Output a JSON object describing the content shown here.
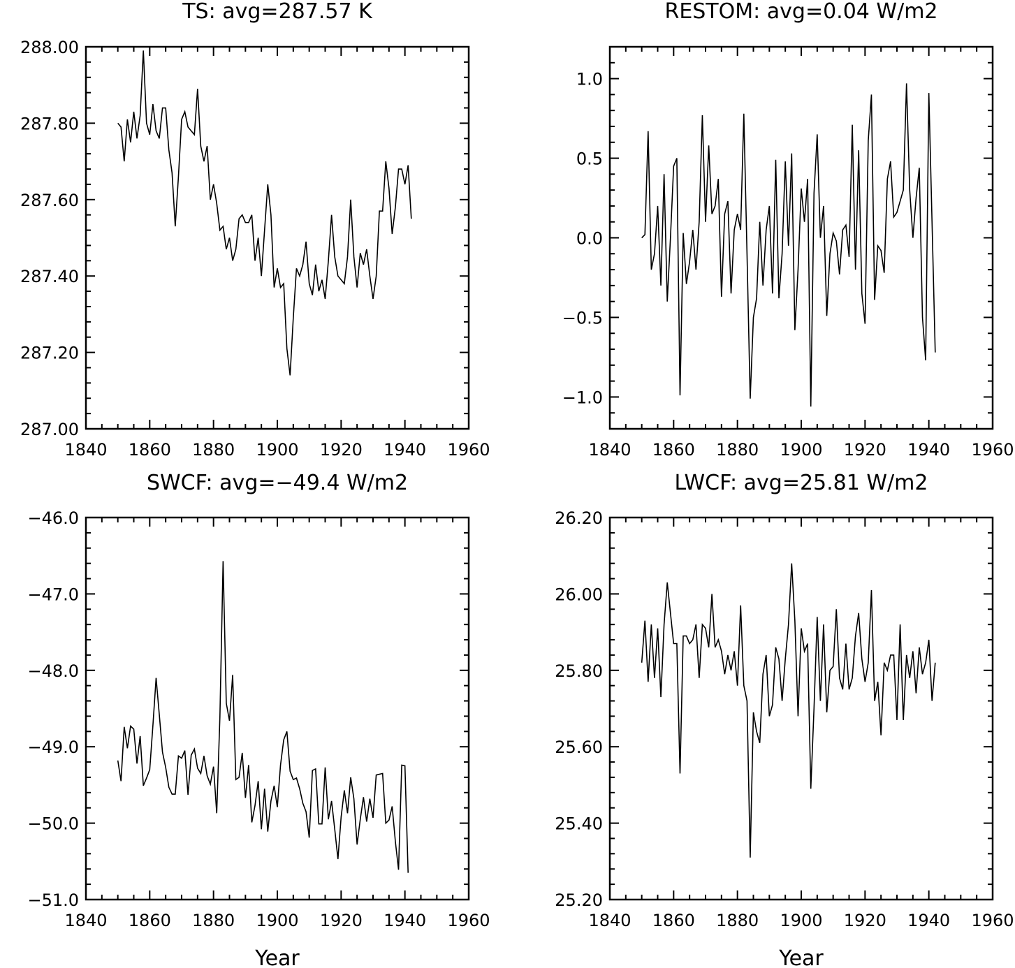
{
  "chart_data": [
    {
      "type": "line",
      "title": "TS: avg=287.57 K",
      "xlabel": "",
      "ylabel": "",
      "xlim": [
        1840,
        1960
      ],
      "ylim": [
        287.0,
        288.0
      ],
      "x_ticks": [
        1840,
        1860,
        1880,
        1900,
        1920,
        1940,
        1960
      ],
      "x_tick_labels": [
        "1840",
        "1860",
        "1880",
        "1900",
        "1920",
        "1940",
        "1960"
      ],
      "y_ticks": [
        287.0,
        287.2,
        287.4,
        287.6,
        287.8,
        288.0
      ],
      "y_tick_labels": [
        "287.00",
        "287.20",
        "287.40",
        "287.60",
        "287.80",
        "288.00"
      ],
      "x_start": 1850,
      "values": [
        287.8,
        287.79,
        287.7,
        287.81,
        287.75,
        287.83,
        287.76,
        287.82,
        287.99,
        287.8,
        287.77,
        287.85,
        287.78,
        287.76,
        287.84,
        287.84,
        287.73,
        287.67,
        287.53,
        287.66,
        287.81,
        287.83,
        287.79,
        287.78,
        287.77,
        287.89,
        287.74,
        287.7,
        287.74,
        287.6,
        287.64,
        287.59,
        287.52,
        287.53,
        287.47,
        287.5,
        287.44,
        287.47,
        287.55,
        287.56,
        287.54,
        287.54,
        287.56,
        287.44,
        287.5,
        287.4,
        287.52,
        287.64,
        287.56,
        287.37,
        287.42,
        287.37,
        287.38,
        287.21,
        287.14,
        287.29,
        287.42,
        287.4,
        287.43,
        287.49,
        287.38,
        287.35,
        287.43,
        287.36,
        287.39,
        287.34,
        287.44,
        287.56,
        287.45,
        287.4,
        287.39,
        287.38,
        287.45,
        287.6,
        287.45,
        287.37,
        287.46,
        287.43,
        287.47,
        287.4,
        287.34,
        287.4,
        287.57,
        287.57,
        287.7,
        287.63,
        287.51,
        287.58,
        287.68,
        287.68,
        287.64,
        287.69,
        287.55
      ]
    },
    {
      "type": "line",
      "title": "RESTOM: avg=0.04 W/m2",
      "xlabel": "",
      "ylabel": "",
      "xlim": [
        1840,
        1960
      ],
      "ylim": [
        -1.2,
        1.2
      ],
      "x_ticks": [
        1840,
        1860,
        1880,
        1900,
        1920,
        1940,
        1960
      ],
      "x_tick_labels": [
        "1840",
        "1860",
        "1880",
        "1900",
        "1920",
        "1940",
        "1960"
      ],
      "y_ticks": [
        -1.0,
        -0.5,
        0.0,
        0.5,
        1.0
      ],
      "y_tick_labels": [
        "−1.0",
        "−0.5",
        "0.0",
        "0.5",
        "1.0"
      ],
      "x_start": 1850,
      "values": [
        0.0,
        0.02,
        0.67,
        -0.2,
        -0.1,
        0.2,
        -0.3,
        0.4,
        -0.4,
        0.0,
        0.45,
        0.5,
        -0.99,
        0.03,
        -0.29,
        -0.15,
        0.05,
        -0.2,
        0.1,
        0.77,
        0.1,
        0.58,
        0.15,
        0.2,
        0.37,
        -0.37,
        0.15,
        0.23,
        -0.35,
        0.05,
        0.15,
        0.05,
        0.78,
        -0.1,
        -1.01,
        -0.5,
        -0.38,
        0.1,
        -0.3,
        0.05,
        0.2,
        -0.35,
        0.49,
        -0.38,
        -0.1,
        0.48,
        -0.05,
        0.53,
        -0.58,
        -0.2,
        0.31,
        0.1,
        0.37,
        -1.06,
        0.28,
        0.65,
        0.0,
        0.2,
        -0.49,
        -0.1,
        0.03,
        -0.02,
        -0.23,
        0.05,
        0.08,
        -0.12,
        0.71,
        -0.2,
        0.55,
        -0.35,
        -0.54,
        0.61,
        0.9,
        -0.39,
        -0.05,
        -0.08,
        -0.22,
        0.37,
        0.48,
        0.13,
        0.16,
        0.23,
        0.3,
        0.97,
        0.3,
        0.0,
        0.25,
        0.44,
        -0.5,
        -0.77,
        0.91,
        0.1,
        -0.72
      ]
    },
    {
      "type": "line",
      "title": "SWCF: avg=−49.4 W/m2",
      "xlabel": "Year",
      "ylabel": "",
      "xlim": [
        1840,
        1960
      ],
      "ylim": [
        -51.0,
        -46.0
      ],
      "x_ticks": [
        1840,
        1860,
        1880,
        1900,
        1920,
        1940,
        1960
      ],
      "x_tick_labels": [
        "1840",
        "1860",
        "1880",
        "1900",
        "1920",
        "1940",
        "1960"
      ],
      "y_ticks": [
        -51.0,
        -50.0,
        -49.0,
        -48.0,
        -47.0,
        -46.0
      ],
      "y_tick_labels": [
        "−51.0",
        "−50.0",
        "−49.0",
        "−48.0",
        "−47.0",
        "−46.0"
      ],
      "x_start": 1850,
      "values": [
        -49.18,
        -49.45,
        -48.74,
        -49.02,
        -48.73,
        -48.77,
        -49.22,
        -48.86,
        -49.51,
        -49.41,
        -49.3,
        -48.72,
        -48.1,
        -48.58,
        -49.07,
        -49.27,
        -49.53,
        -49.62,
        -49.62,
        -49.12,
        -49.15,
        -49.05,
        -49.63,
        -49.11,
        -49.03,
        -49.28,
        -49.35,
        -49.12,
        -49.38,
        -49.49,
        -49.26,
        -49.87,
        -48.61,
        -46.57,
        -48.43,
        -48.66,
        -48.06,
        -49.43,
        -49.4,
        -49.08,
        -49.67,
        -49.24,
        -49.99,
        -49.77,
        -49.45,
        -50.08,
        -49.55,
        -50.11,
        -49.71,
        -49.51,
        -49.79,
        -49.24,
        -48.91,
        -48.8,
        -49.32,
        -49.43,
        -49.41,
        -49.55,
        -49.74,
        -49.85,
        -50.19,
        -49.31,
        -49.29,
        -50.01,
        -50.01,
        -49.27,
        -49.95,
        -49.71,
        -50.08,
        -50.47,
        -49.92,
        -49.57,
        -49.87,
        -49.4,
        -49.68,
        -50.28,
        -49.95,
        -49.66,
        -49.98,
        -49.68,
        -49.93,
        -49.37,
        -49.36,
        -49.35,
        -50.0,
        -49.96,
        -49.78,
        -50.24,
        -50.61,
        -49.24,
        -49.25,
        -50.65
      ]
    },
    {
      "type": "line",
      "title": "LWCF: avg=25.81 W/m2",
      "xlabel": "Year",
      "ylabel": "",
      "xlim": [
        1840,
        1960
      ],
      "ylim": [
        25.2,
        26.2
      ],
      "x_ticks": [
        1840,
        1860,
        1880,
        1900,
        1920,
        1940,
        1960
      ],
      "x_tick_labels": [
        "1840",
        "1860",
        "1880",
        "1900",
        "1920",
        "1940",
        "1960"
      ],
      "y_ticks": [
        25.2,
        25.4,
        25.6,
        25.8,
        26.0,
        26.2
      ],
      "y_tick_labels": [
        "25.20",
        "25.40",
        "25.60",
        "25.80",
        "26.00",
        "26.20"
      ],
      "x_start": 1850,
      "values": [
        25.82,
        25.93,
        25.77,
        25.92,
        25.78,
        25.91,
        25.73,
        25.92,
        26.03,
        25.95,
        25.87,
        25.87,
        25.53,
        25.89,
        25.89,
        25.87,
        25.88,
        25.92,
        25.78,
        25.92,
        25.91,
        25.86,
        26.0,
        25.86,
        25.88,
        25.85,
        25.79,
        25.84,
        25.8,
        25.85,
        25.76,
        25.97,
        25.76,
        25.72,
        25.31,
        25.69,
        25.64,
        25.61,
        25.79,
        25.84,
        25.68,
        25.71,
        25.86,
        25.83,
        25.72,
        25.83,
        25.92,
        26.08,
        25.93,
        25.68,
        25.91,
        25.85,
        25.87,
        25.49,
        25.7,
        25.94,
        25.72,
        25.92,
        25.69,
        25.8,
        25.81,
        25.96,
        25.78,
        25.75,
        25.87,
        25.75,
        25.78,
        25.89,
        25.95,
        25.83,
        25.77,
        25.82,
        26.01,
        25.72,
        25.77,
        25.63,
        25.82,
        25.8,
        25.84,
        25.84,
        25.67,
        25.92,
        25.67,
        25.84,
        25.78,
        25.85,
        25.74,
        25.86,
        25.79,
        25.82,
        25.88,
        25.72,
        25.82
      ]
    }
  ]
}
